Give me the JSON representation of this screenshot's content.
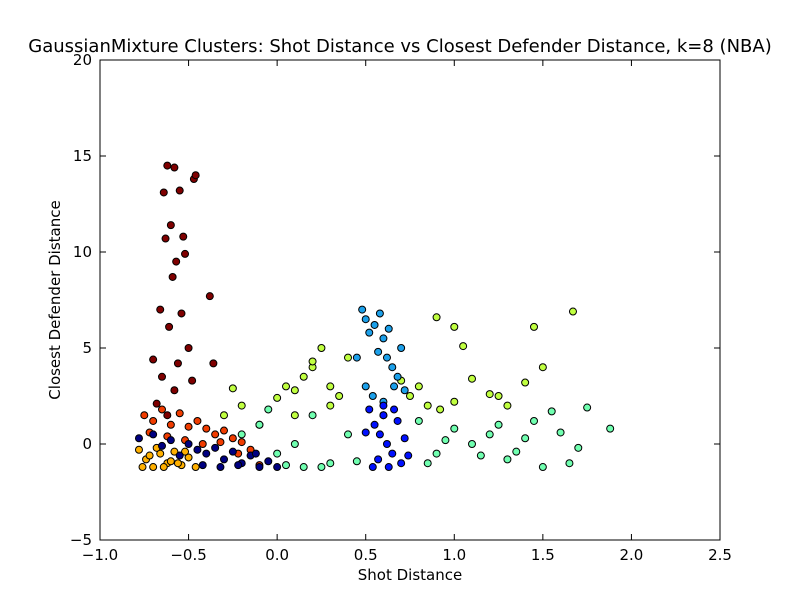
{
  "chart_data": {
    "type": "scatter",
    "title": "GaussianMixture Clusters: Shot Distance vs Closest Defender Distance, k=8 (NBA)",
    "x_label": "Shot Distance",
    "y_label": "Closest Defender Distance",
    "xlim": [
      -1,
      2.5
    ],
    "ylim": [
      -5,
      20
    ],
    "xticks": [
      {
        "value": -1,
        "label": "−1.0"
      },
      {
        "value": -0.5,
        "label": "−0.5"
      },
      {
        "value": 0,
        "label": "0.0"
      },
      0.5,
      {
        "value": 1,
        "label": "1.0"
      },
      1.5,
      {
        "value": 2,
        "label": "2.0"
      },
      2.5
    ],
    "yticks": [
      {
        "value": -5,
        "label": "−5"
      },
      0,
      5,
      10,
      15,
      20
    ],
    "series": [
      {
        "color": "#7f0000",
        "x": [
          -0.62,
          -0.58,
          -0.64,
          -0.55,
          -0.47,
          -0.46,
          -0.6,
          -0.53,
          -0.57,
          -0.63,
          -0.52,
          -0.59,
          -0.38,
          -0.66,
          -0.54,
          -0.7,
          -0.5,
          -0.61,
          -0.56,
          -0.65,
          -0.48,
          -0.36,
          -0.68,
          -0.58,
          -0.62
        ],
        "values": [
          14.5,
          14.4,
          13.1,
          13.2,
          13.8,
          14.0,
          11.4,
          10.8,
          9.5,
          10.7,
          9.9,
          8.7,
          7.7,
          7.0,
          6.8,
          4.4,
          5.0,
          6.1,
          4.2,
          3.5,
          3.3,
          4.2,
          2.1,
          2.8,
          1.5
        ]
      },
      {
        "color": "#f03c00",
        "x": [
          -0.75,
          -0.7,
          -0.65,
          -0.6,
          -0.55,
          -0.5,
          -0.45,
          -0.4,
          -0.35,
          -0.3,
          -0.25,
          -0.2,
          -0.15,
          -0.72,
          -0.62,
          -0.52,
          -0.42,
          -0.32,
          -0.22,
          -0.1
        ],
        "values": [
          1.5,
          1.2,
          1.8,
          1.0,
          1.6,
          0.9,
          1.2,
          0.8,
          0.5,
          0.7,
          0.3,
          0.1,
          -0.3,
          0.6,
          0.4,
          0.2,
          0.0,
          0.1,
          -0.5,
          -1.1
        ]
      },
      {
        "color": "#ffb000",
        "x": [
          -0.78,
          -0.74,
          -0.7,
          -0.66,
          -0.62,
          -0.58,
          -0.54,
          -0.5,
          -0.46,
          -0.76,
          -0.68,
          -0.6,
          -0.52,
          -0.72,
          -0.64,
          -0.56
        ],
        "values": [
          -0.3,
          -0.8,
          -1.2,
          -0.5,
          -1.0,
          -0.4,
          -1.1,
          -0.7,
          -1.2,
          -1.2,
          -0.2,
          -0.9,
          -0.4,
          -0.6,
          -1.2,
          -1.0
        ]
      },
      {
        "color": "#000080",
        "x": [
          -0.78,
          -0.7,
          -0.6,
          -0.5,
          -0.45,
          -0.4,
          -0.35,
          -0.3,
          -0.25,
          -0.2,
          -0.15,
          -0.1,
          -0.05,
          0.0,
          -0.42,
          -0.32,
          -0.22,
          -0.12,
          -0.55,
          -0.65
        ],
        "values": [
          0.3,
          0.5,
          0.2,
          0.0,
          -0.3,
          -0.5,
          -0.2,
          -0.8,
          -0.4,
          -1.0,
          -0.6,
          -1.2,
          -0.9,
          -1.2,
          -1.1,
          -1.2,
          -1.1,
          -0.5,
          -0.6,
          -0.1
        ]
      },
      {
        "color": "#c0ff40",
        "x": [
          -0.3,
          -0.2,
          -0.1,
          0.0,
          0.1,
          0.15,
          0.2,
          0.25,
          0.3,
          0.35,
          0.4,
          0.8,
          0.85,
          0.9,
          1.0,
          1.05,
          1.1,
          1.2,
          1.25,
          1.3,
          1.4,
          1.45,
          1.5,
          1.67,
          0.92,
          1.0,
          -0.25,
          0.1,
          0.05,
          0.2,
          0.3,
          0.7,
          0.75,
          0.6
        ],
        "values": [
          1.5,
          2.0,
          1.0,
          2.4,
          2.8,
          3.5,
          4.0,
          5.0,
          3.0,
          2.5,
          4.5,
          3.0,
          2.0,
          6.6,
          6.1,
          5.1,
          3.4,
          2.6,
          2.5,
          2.0,
          3.2,
          6.1,
          4.0,
          6.9,
          1.8,
          2.2,
          2.9,
          1.5,
          3.0,
          4.3,
          2.0,
          3.3,
          2.5,
          1.5
        ]
      },
      {
        "color": "#70ffb0",
        "x": [
          -0.2,
          -0.1,
          0.0,
          0.1,
          0.2,
          0.3,
          0.4,
          0.8,
          0.9,
          1.0,
          1.1,
          1.2,
          1.3,
          1.4,
          1.5,
          1.6,
          1.7,
          1.75,
          1.88,
          1.35,
          1.45,
          1.55,
          1.65,
          0.05,
          0.25,
          0.45,
          0.85,
          0.95,
          1.15,
          1.25,
          -0.05,
          0.15
        ],
        "values": [
          0.5,
          1.0,
          -0.5,
          0.0,
          1.5,
          -1.0,
          0.5,
          1.2,
          -0.5,
          0.8,
          0.0,
          0.5,
          -0.8,
          0.3,
          -1.2,
          0.6,
          -0.2,
          1.9,
          0.8,
          -0.4,
          1.2,
          1.7,
          -1.0,
          -1.1,
          -1.2,
          -0.9,
          -1.0,
          0.2,
          -0.6,
          1.0,
          1.8,
          -1.2
        ]
      },
      {
        "color": "#1ca0ea",
        "x": [
          0.48,
          0.5,
          0.52,
          0.55,
          0.58,
          0.6,
          0.62,
          0.65,
          0.68,
          0.7,
          0.5,
          0.54,
          0.6,
          0.66,
          0.72,
          0.45,
          0.57,
          0.63
        ],
        "values": [
          7.0,
          6.5,
          5.8,
          6.2,
          6.8,
          5.5,
          4.5,
          4.0,
          3.5,
          5.0,
          3.0,
          2.5,
          2.2,
          3.0,
          2.8,
          4.5,
          4.8,
          6.0
        ]
      },
      {
        "color": "#0010ff",
        "x": [
          0.52,
          0.55,
          0.58,
          0.6,
          0.62,
          0.65,
          0.68,
          0.7,
          0.72,
          0.54,
          0.57,
          0.63,
          0.66,
          0.5,
          0.74,
          0.6
        ],
        "values": [
          1.8,
          1.0,
          0.5,
          1.5,
          0.0,
          -0.5,
          1.2,
          -1.0,
          0.3,
          -1.2,
          -0.8,
          -1.2,
          1.8,
          0.6,
          -0.6,
          2.0
        ]
      }
    ]
  }
}
